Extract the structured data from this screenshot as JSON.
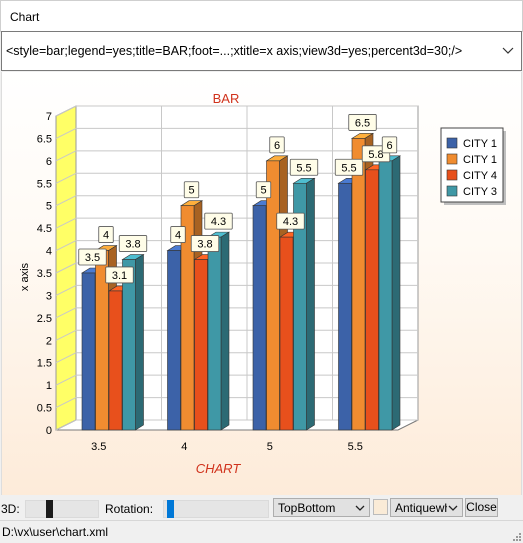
{
  "window": {
    "title": "Chart"
  },
  "command": {
    "text": "<style=bar;legend=yes;title=BAR;foot=...;xtitle=x axis;view3d=yes;percent3d=30;/>"
  },
  "chart_data": {
    "type": "bar",
    "title": "BAR",
    "footer": "CHART",
    "ylabel": "x axis",
    "xlabel": "",
    "categories": [
      "3.5",
      "4",
      "5",
      "5.5"
    ],
    "series": [
      {
        "name": "CITY 1",
        "values": [
          3.5,
          4,
          5,
          5.5
        ],
        "color": "#3c62a8"
      },
      {
        "name": "CITY 1",
        "values": [
          4,
          5,
          6,
          6.5
        ],
        "color": "#f08c30"
      },
      {
        "name": "CITY 4",
        "values": [
          3.1,
          3.8,
          4.3,
          5.8
        ],
        "color": "#e8501c"
      },
      {
        "name": "CITY 3",
        "values": [
          3.8,
          4.3,
          5.5,
          6
        ],
        "color": "#3f98a6"
      }
    ],
    "ylim": [
      0,
      7
    ],
    "yticks": [
      "0",
      "0.5",
      "1",
      "1.5",
      "2",
      "2.5",
      "3",
      "3.5",
      "4",
      "4.5",
      "5",
      "5.5",
      "6",
      "6.5",
      "7"
    ],
    "view3d": true,
    "legend": "right",
    "grid": true
  },
  "controls": {
    "label_3d": "3D:",
    "label_rotation": "Rotation:",
    "projection": "TopBottom",
    "color_name": "Antiquewhite",
    "close_label": "Close",
    "slider_3d": 0.3,
    "slider_rotation": 0.03
  },
  "status": {
    "path": "D:\\vx\\user\\chart.xml"
  },
  "colors": {
    "title": "#d0321c",
    "wall_left": "#ffff66",
    "label_bg": "#fffde8",
    "thumb_3d": "#1a1a1a",
    "thumb_rotation": "#0078d7"
  }
}
